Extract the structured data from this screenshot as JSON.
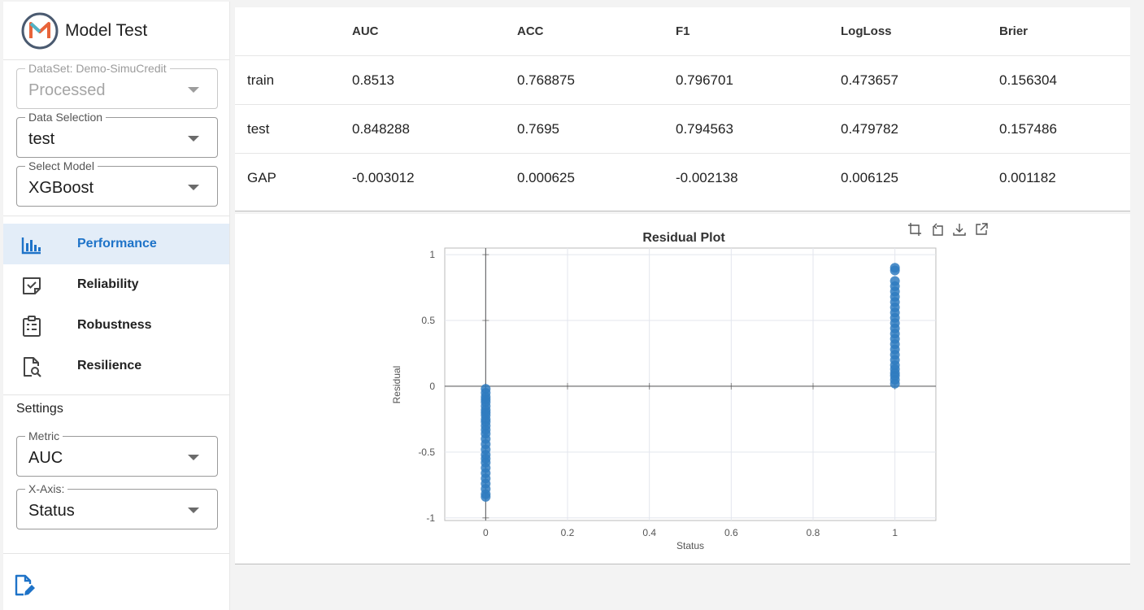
{
  "app": {
    "title": "Model Test"
  },
  "controls": {
    "dataset": {
      "label": "DataSet: Demo-SimuCredit",
      "value": "Processed"
    },
    "data_selection": {
      "label": "Data Selection",
      "value": "test"
    },
    "model": {
      "label": "Select Model",
      "value": "XGBoost"
    }
  },
  "nav": [
    {
      "label": "Performance",
      "icon": "bar-chart-icon",
      "active": true
    },
    {
      "label": "Reliability",
      "icon": "check-note-icon",
      "active": false
    },
    {
      "label": "Robustness",
      "icon": "clipboard-list-icon",
      "active": false
    },
    {
      "label": "Resilience",
      "icon": "doc-search-icon",
      "active": false
    }
  ],
  "settings": {
    "title": "Settings",
    "metric": {
      "label": "Metric",
      "value": "AUC"
    },
    "xaxis": {
      "label": "X-Axis:",
      "value": "Status"
    }
  },
  "table": {
    "columns": [
      "",
      "AUC",
      "ACC",
      "F1",
      "LogLoss",
      "Brier"
    ],
    "rows": [
      [
        "train",
        "0.8513",
        "0.768875",
        "0.796701",
        "0.473657",
        "0.156304"
      ],
      [
        "test",
        "0.848288",
        "0.7695",
        "0.794563",
        "0.479782",
        "0.157486"
      ],
      [
        "GAP",
        "-0.003012",
        "0.000625",
        "-0.002138",
        "0.006125",
        "0.001182"
      ]
    ]
  },
  "chart_data": {
    "type": "scatter",
    "title": "Residual Plot",
    "xlabel": "Status",
    "ylabel": "Residual",
    "xlim": [
      -0.1,
      1.1
    ],
    "ylim": [
      -1.02,
      1.05
    ],
    "xticks": [
      "0",
      "0.2",
      "0.4",
      "0.6",
      "0.8",
      "1"
    ],
    "yticks": [
      "1",
      "0.5",
      "0",
      "-0.5",
      "-1"
    ],
    "color": "#2f7bbf",
    "series": [
      {
        "x": 0,
        "y": [
          -0.02,
          -0.05,
          -0.08,
          -0.1,
          -0.12,
          -0.15,
          -0.18,
          -0.2,
          -0.22,
          -0.25,
          -0.27,
          -0.3,
          -0.33,
          -0.36,
          -0.4,
          -0.44,
          -0.48,
          -0.52,
          -0.55,
          -0.58,
          -0.62,
          -0.66,
          -0.7,
          -0.74,
          -0.78,
          -0.82,
          -0.84
        ]
      },
      {
        "x": 1,
        "y": [
          0.02,
          0.05,
          0.08,
          0.1,
          0.13,
          0.16,
          0.2,
          0.24,
          0.28,
          0.32,
          0.36,
          0.4,
          0.44,
          0.48,
          0.52,
          0.56,
          0.6,
          0.64,
          0.68,
          0.72,
          0.76,
          0.8,
          0.88,
          0.9
        ]
      }
    ],
    "grid": true
  },
  "toolbox": [
    "zoom-icon",
    "zoom-reset-icon",
    "download-icon",
    "open-external-icon"
  ]
}
